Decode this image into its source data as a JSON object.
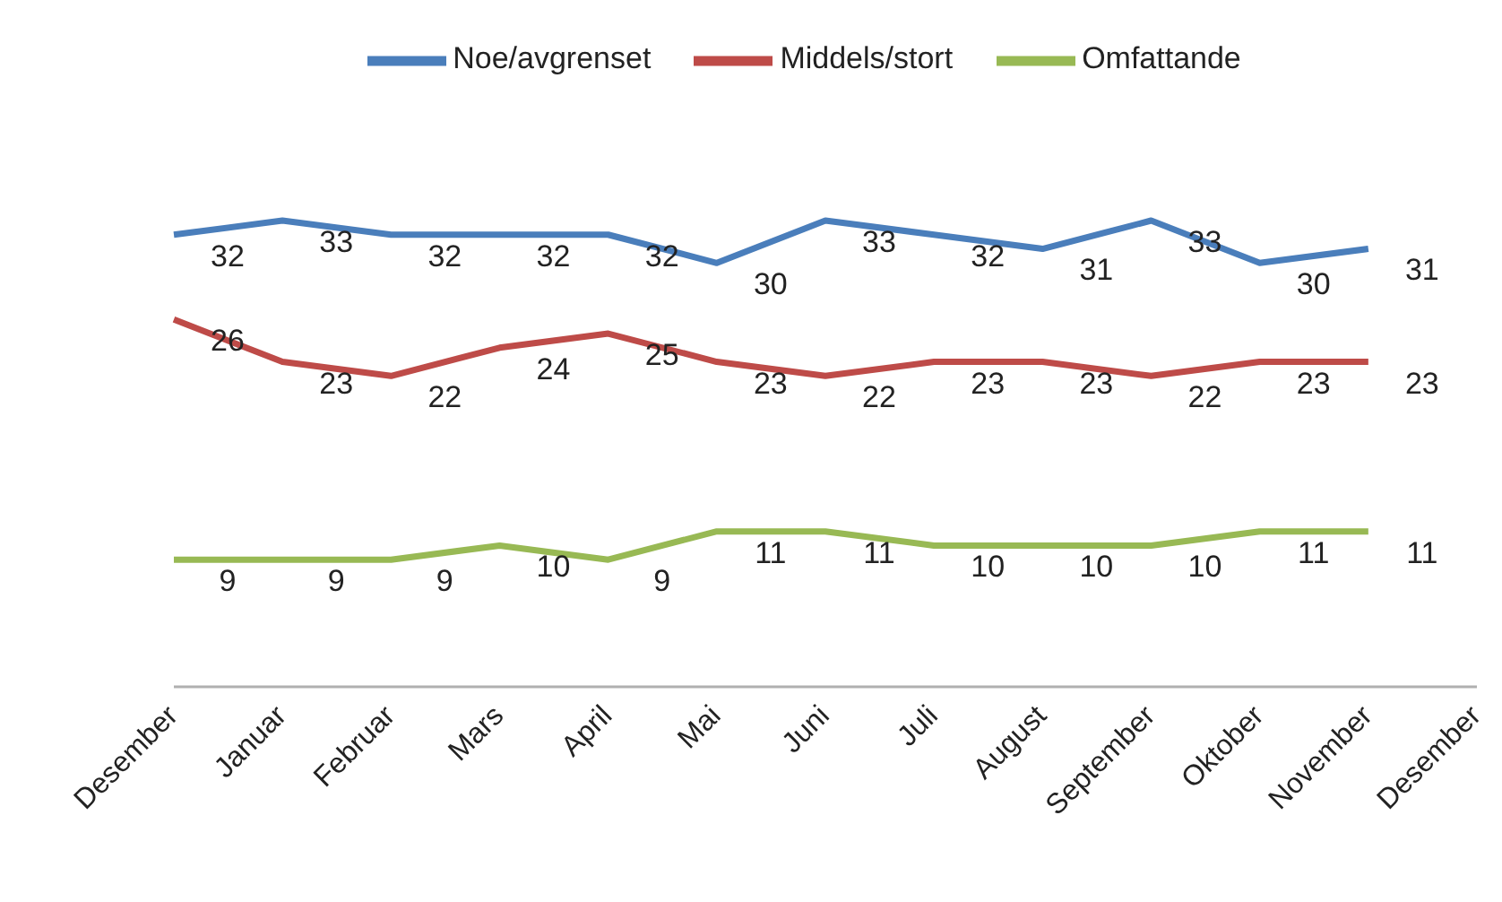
{
  "chart_data": {
    "type": "line",
    "categories": [
      "Desember",
      "Januar",
      "Februar",
      "Mars",
      "April",
      "Mai",
      "Juni",
      "Juli",
      "August",
      "September",
      "Oktober",
      "November",
      "Desember"
    ],
    "series": [
      {
        "name": "Noe/avgrenset",
        "color": "#4a7ebb",
        "values": [
          32,
          33,
          32,
          32,
          32,
          30,
          33,
          32,
          31,
          33,
          30,
          31,
          null
        ]
      },
      {
        "name": "Middels/stort",
        "color": "#be4b48",
        "values": [
          26,
          23,
          22,
          24,
          25,
          23,
          22,
          23,
          23,
          22,
          23,
          23,
          null
        ]
      },
      {
        "name": "Omfattande",
        "color": "#98b954",
        "values": [
          9,
          9,
          9,
          10,
          9,
          11,
          11,
          10,
          10,
          10,
          11,
          11,
          null
        ]
      }
    ],
    "data_labels": true,
    "legend": "top",
    "marker": "none",
    "grid": false
  }
}
